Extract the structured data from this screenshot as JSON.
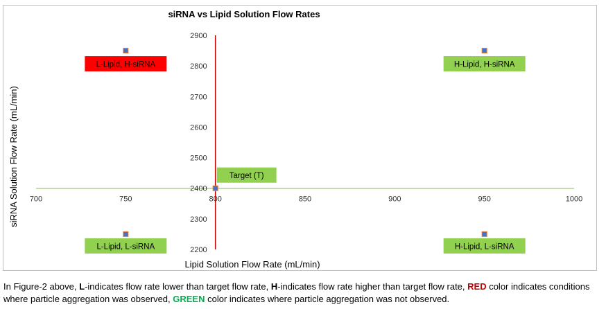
{
  "chart_data": {
    "type": "scatter",
    "title": "siRNA vs Lipid Solution Flow Rates",
    "xlabel": "Lipid Solution Flow Rate (mL/min)",
    "ylabel": "siRNA Solution Flow Rate (mL/min)",
    "xlim": [
      700,
      1000
    ],
    "ylim": [
      2200,
      2900
    ],
    "x_ticks": [
      700,
      750,
      800,
      850,
      900,
      950,
      1000
    ],
    "y_ticks": [
      2200,
      2300,
      2400,
      2500,
      2600,
      2700,
      2800,
      2900
    ],
    "axis_cross": {
      "x": 800,
      "y": 2400
    },
    "grid": false,
    "points": [
      {
        "x": 750,
        "y": 2850,
        "label": "L-Lipid, H-siRNA",
        "status": "red"
      },
      {
        "x": 950,
        "y": 2850,
        "label": "H-Lipid, H-siRNA",
        "status": "green"
      },
      {
        "x": 800,
        "y": 2400,
        "label": "Target (T)",
        "status": "green"
      },
      {
        "x": 750,
        "y": 2250,
        "label": "L-Lipid, L-siRNA",
        "status": "green"
      },
      {
        "x": 950,
        "y": 2250,
        "label": "H-Lipid, L-siRNA",
        "status": "green"
      }
    ]
  },
  "colors": {
    "red": "#ff0000",
    "green": "#92d050",
    "marker": "#4472c4",
    "marker_edge": "#ed7d31",
    "x_axis_line": "#92d050",
    "y_axis_line": "#c00000"
  },
  "caption": {
    "p1": "In Figure-2 above, ",
    "b1": "L",
    "p2": "-indicates flow rate lower than target flow rate, ",
    "b2": "H",
    "p3": "-indicates flow rate higher than target flow rate, ",
    "b3": "RED",
    "p4": " color indicates conditions where particle aggregation was observed, ",
    "b4": "GREEN",
    "p5": " color indicates where particle aggregation was not observed."
  }
}
